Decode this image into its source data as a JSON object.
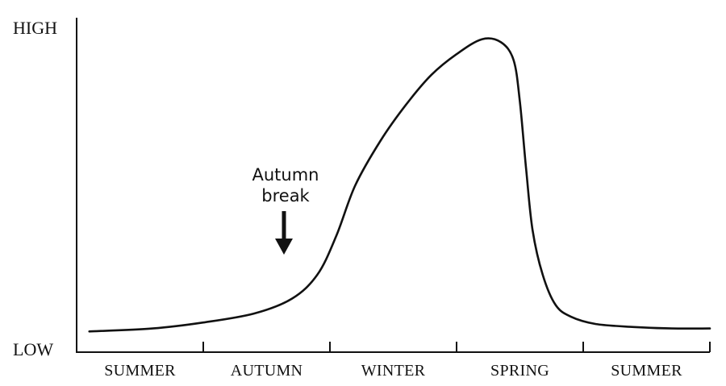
{
  "chart_data": {
    "type": "line",
    "title": "",
    "xlabel": "",
    "ylabel": "",
    "y_ticks": [
      "HIGH",
      "LOW"
    ],
    "ylim": [
      0,
      1
    ],
    "seasons": [
      "SUMMER",
      "AUTUMN",
      "WINTER",
      "SPRING",
      "SUMMER"
    ],
    "xlim": [
      0,
      5
    ],
    "series": [
      {
        "x": [
          0.1,
          0.6,
          1.0,
          1.4,
          1.7,
          1.9,
          2.05,
          2.2,
          2.4,
          2.6,
          2.8,
          3.0,
          3.2,
          3.35,
          3.45,
          3.5,
          3.55,
          3.6,
          3.68,
          3.78,
          3.9,
          4.1,
          4.4,
          4.7,
          5.0
        ],
        "y": [
          0.01,
          0.02,
          0.04,
          0.07,
          0.12,
          0.2,
          0.33,
          0.5,
          0.65,
          0.77,
          0.87,
          0.94,
          0.99,
          0.98,
          0.92,
          0.78,
          0.55,
          0.35,
          0.2,
          0.1,
          0.06,
          0.035,
          0.025,
          0.02,
          0.02
        ]
      }
    ],
    "annotations": [
      {
        "text": [
          "Autumn",
          "break"
        ],
        "x": 1.65,
        "y": 0.25,
        "arrow": "down"
      }
    ],
    "grid": false,
    "legend": "none"
  }
}
